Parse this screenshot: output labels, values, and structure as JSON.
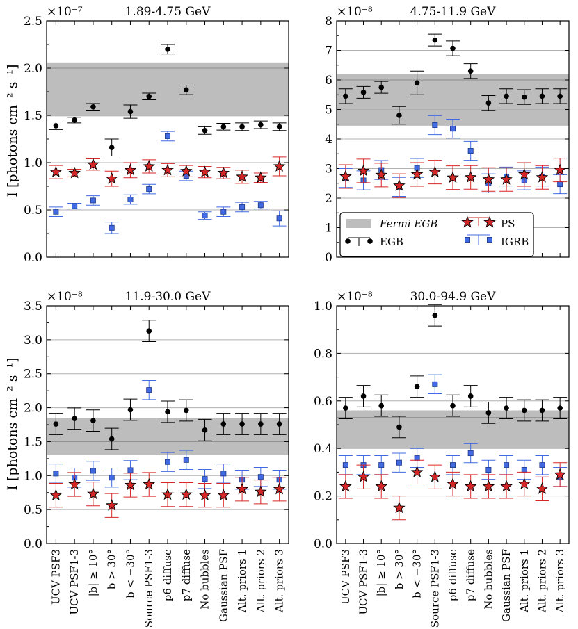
{
  "figure": {
    "ylabel": "I [photons cm⁻² s⁻¹]",
    "categories": [
      "UCV PSF3",
      "UCV PSF1-3",
      "|b| ≥ 10°",
      "b > 30°",
      "b < −30°",
      "Source PSF1-3",
      "p6 diffuse",
      "p7 diffuse",
      "No bubbles",
      "Gaussian PSF",
      "Alt. priors 1",
      "Alt. priors 2",
      "Alt. priors 3"
    ],
    "legend": [
      {
        "key": "egb_band",
        "label": "Fermi EGB",
        "color": "#bdbdbd"
      },
      {
        "key": "egb",
        "label": "EGB",
        "color": "#000000",
        "marker": "circle"
      },
      {
        "key": "ps",
        "label": "PS",
        "color": "#d62728",
        "marker": "star"
      },
      {
        "key": "igrb",
        "label": "IGRB",
        "color": "#4169e1",
        "marker": "square"
      }
    ]
  },
  "chart_data": [
    {
      "type": "scatter",
      "title": "1.89-4.75 GeV",
      "exponent": "×10⁻⁷",
      "ylim": [
        0,
        2.5
      ],
      "yticks": [
        "0.0",
        "0.5",
        "1.0",
        "1.5",
        "2.0",
        "2.5"
      ],
      "ytick_values": [
        0,
        0.5,
        1.0,
        1.5,
        2.0,
        2.5
      ],
      "grid_lines": [
        0.5,
        1.0,
        1.5,
        2.0
      ],
      "band": [
        1.49,
        2.06
      ],
      "band_line": 2.0,
      "series": [
        {
          "name": "EGB",
          "values": [
            1.39,
            1.45,
            1.59,
            1.16,
            1.54,
            1.7,
            2.2,
            1.77,
            1.34,
            1.38,
            1.38,
            1.4,
            1.38
          ],
          "errors": [
            0.04,
            0.03,
            0.035,
            0.09,
            0.07,
            0.035,
            0.05,
            0.05,
            0.04,
            0.035,
            0.04,
            0.04,
            0.04
          ]
        },
        {
          "name": "PS",
          "values": [
            0.9,
            0.89,
            0.98,
            0.83,
            0.92,
            0.96,
            0.92,
            0.91,
            0.9,
            0.89,
            0.85,
            0.84,
            0.96
          ],
          "errors": [
            0.07,
            0.04,
            0.06,
            0.08,
            0.08,
            0.07,
            0.07,
            0.06,
            0.06,
            0.06,
            0.07,
            0.05,
            0.1
          ]
        },
        {
          "name": "IGRB",
          "values": [
            0.48,
            0.54,
            0.6,
            0.31,
            0.61,
            0.72,
            1.28,
            0.86,
            0.44,
            0.48,
            0.53,
            0.55,
            0.41
          ],
          "errors": [
            0.05,
            0.03,
            0.05,
            0.06,
            0.05,
            0.05,
            0.05,
            0.05,
            0.04,
            0.05,
            0.05,
            0.04,
            0.08
          ]
        }
      ]
    },
    {
      "type": "scatter",
      "title": "4.75-11.9 GeV",
      "exponent": "×10⁻⁸",
      "ylim": [
        0,
        8
      ],
      "yticks": [
        "0",
        "1",
        "2",
        "3",
        "4",
        "5",
        "6",
        "7",
        "8"
      ],
      "ytick_values": [
        0,
        1,
        2,
        3,
        4,
        5,
        6,
        7,
        8
      ],
      "grid_lines": [
        1,
        2,
        3,
        4,
        5,
        6,
        7
      ],
      "band": [
        4.45,
        6.2
      ],
      "band_line": 6.0,
      "series": [
        {
          "name": "EGB",
          "values": [
            5.45,
            5.58,
            5.75,
            4.8,
            5.9,
            7.35,
            7.07,
            6.3,
            5.22,
            5.45,
            5.42,
            5.45,
            5.45
          ],
          "errors": [
            0.25,
            0.2,
            0.2,
            0.3,
            0.4,
            0.2,
            0.25,
            0.25,
            0.25,
            0.25,
            0.25,
            0.25,
            0.25
          ]
        },
        {
          "name": "PS",
          "values": [
            2.73,
            2.92,
            2.78,
            2.42,
            2.8,
            2.88,
            2.69,
            2.7,
            2.63,
            2.63,
            2.8,
            2.7,
            2.95
          ]
        },
        {
          "name": "IGRB",
          "values": [
            2.68,
            2.6,
            2.95,
            2.38,
            3.02,
            4.47,
            4.35,
            3.6,
            2.5,
            2.73,
            2.6,
            2.73,
            2.47
          ]
        }
      ]
    },
    {
      "type": "scatter",
      "title": "11.9-30.0 GeV",
      "exponent": "×10⁻⁸",
      "ylim": [
        0,
        3.5
      ],
      "yticks": [
        "0.0",
        "0.5",
        "1.0",
        "1.5",
        "2.0",
        "2.5",
        "3.0",
        "3.5"
      ],
      "ytick_values": [
        0,
        0.5,
        1.0,
        1.5,
        2.0,
        2.5,
        3.0,
        3.5
      ],
      "grid_lines": [
        0.5,
        1.0,
        1.5,
        2.0,
        2.5,
        3.0
      ],
      "band": [
        1.31,
        1.85
      ],
      "band_line": 1.5,
      "series": [
        {
          "name": "EGB",
          "values": [
            1.76,
            1.84,
            1.81,
            1.54,
            1.97,
            3.13,
            1.94,
            1.96,
            1.67,
            1.76,
            1.76,
            1.76,
            1.76
          ]
        },
        {
          "name": "PS",
          "values": [
            0.71,
            0.87,
            0.73,
            0.56,
            0.86,
            0.87,
            0.72,
            0.72,
            0.71,
            0.71,
            0.8,
            0.76,
            0.8
          ]
        },
        {
          "name": "IGRB",
          "values": [
            1.03,
            0.97,
            1.07,
            0.97,
            1.08,
            2.26,
            1.2,
            1.23,
            0.95,
            1.03,
            0.94,
            0.98,
            0.94
          ]
        }
      ]
    },
    {
      "type": "scatter",
      "title": "30.0-94.9 GeV",
      "exponent": "×10⁻⁸",
      "ylim": [
        0,
        1.0
      ],
      "yticks": [
        "0.0",
        "0.2",
        "0.4",
        "0.6",
        "0.8",
        "1.0"
      ],
      "ytick_values": [
        0,
        0.2,
        0.4,
        0.6,
        0.8,
        1.0
      ],
      "grid_lines": [
        0.2,
        0.4,
        0.6,
        0.8
      ],
      "band": [
        0.4,
        0.56
      ],
      "band_line": 0.53,
      "series": [
        {
          "name": "EGB",
          "values": [
            0.57,
            0.62,
            0.58,
            0.49,
            0.66,
            0.96,
            0.58,
            0.62,
            0.55,
            0.57,
            0.56,
            0.56,
            0.57
          ]
        },
        {
          "name": "PS",
          "values": [
            0.24,
            0.28,
            0.24,
            0.15,
            0.3,
            0.28,
            0.25,
            0.24,
            0.24,
            0.24,
            0.25,
            0.23,
            0.29
          ]
        },
        {
          "name": "IGRB",
          "values": [
            0.33,
            0.33,
            0.33,
            0.34,
            0.36,
            0.67,
            0.33,
            0.38,
            0.31,
            0.33,
            0.31,
            0.33,
            0.28
          ]
        }
      ]
    }
  ]
}
